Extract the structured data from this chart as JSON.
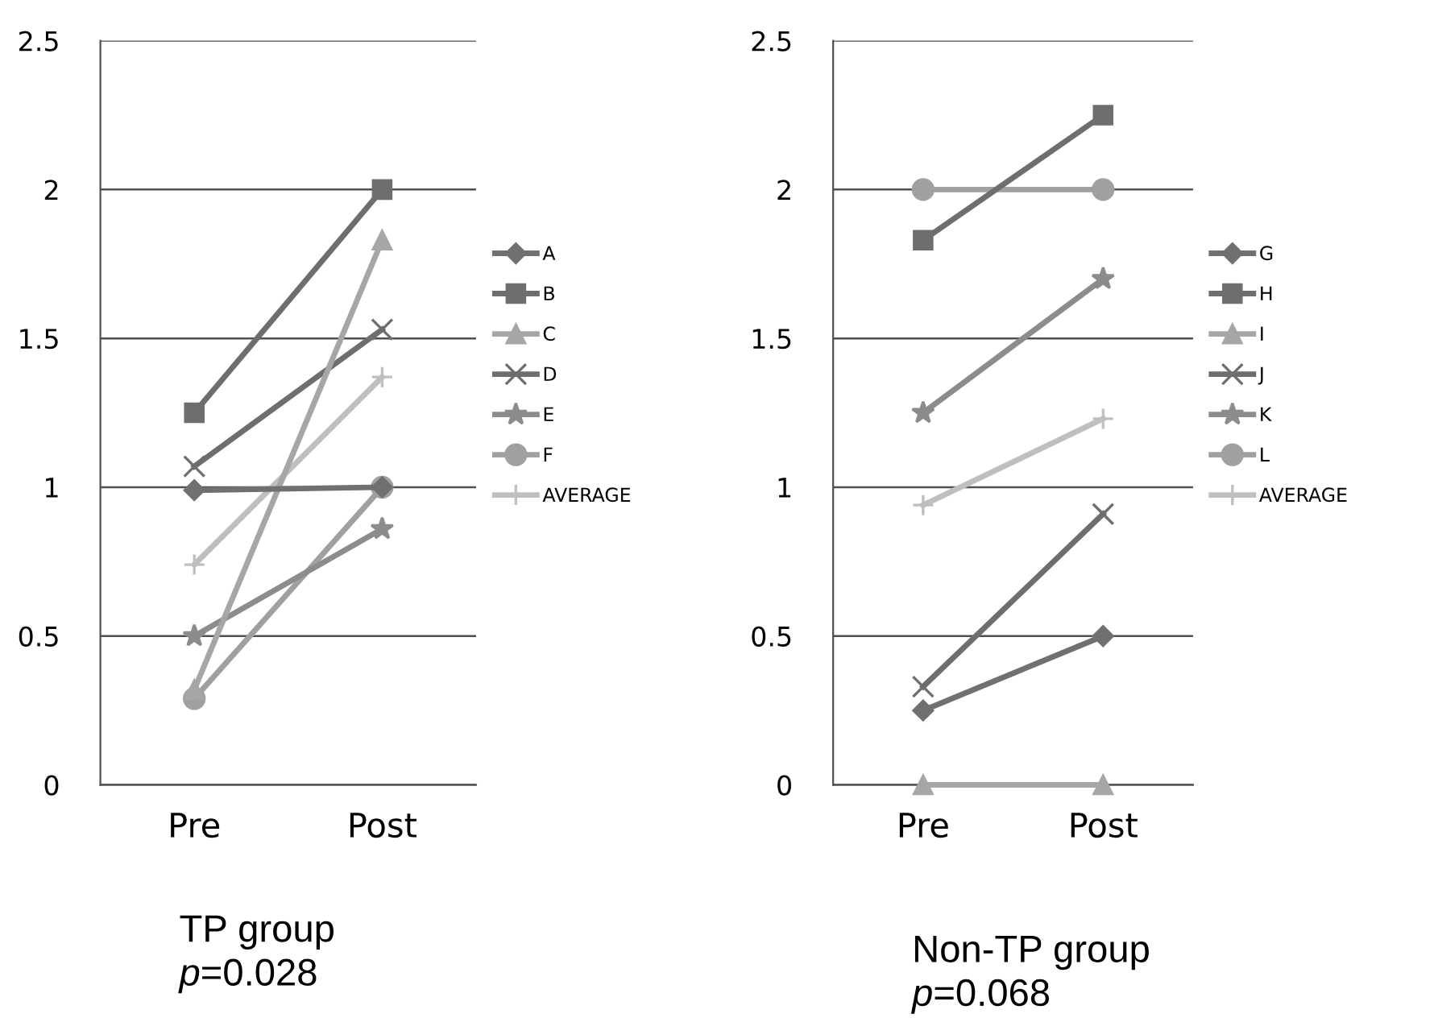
{
  "chart_data": [
    {
      "type": "line",
      "title": "TP group",
      "annotations": [
        "p=0.028"
      ],
      "categories": [
        "Pre",
        "Post"
      ],
      "ylim": [
        0,
        2.5
      ],
      "yticks": [
        0,
        0.5,
        1,
        1.5,
        2,
        2.5
      ],
      "grid": "y",
      "legend": "right",
      "series": [
        {
          "name": "A",
          "color": "#707070",
          "marker": "diamond",
          "values": [
            0.99,
            1.0
          ]
        },
        {
          "name": "B",
          "color": "#6e6e6e",
          "marker": "square",
          "values": [
            1.25,
            2.0
          ]
        },
        {
          "name": "C",
          "color": "#a6a6a6",
          "marker": "triangle",
          "values": [
            0.32,
            1.83
          ]
        },
        {
          "name": "D",
          "color": "#6e6e6e",
          "marker": "cross",
          "values": [
            1.07,
            1.53
          ]
        },
        {
          "name": "E",
          "color": "#8c8c8c",
          "marker": "star",
          "values": [
            0.5,
            0.86
          ]
        },
        {
          "name": "F",
          "color": "#a0a0a0",
          "marker": "circle",
          "values": [
            0.29,
            1.0
          ]
        },
        {
          "name": "AVERAGE",
          "color": "#bfbfbf",
          "marker": "plus",
          "values": [
            0.74,
            1.37
          ]
        }
      ]
    },
    {
      "type": "line",
      "title": "Non-TP group",
      "annotations": [
        "p=0.068"
      ],
      "categories": [
        "Pre",
        "Post"
      ],
      "ylim": [
        0,
        2.5
      ],
      "yticks": [
        0,
        0.5,
        1,
        1.5,
        2,
        2.5
      ],
      "grid": "y",
      "legend": "right",
      "series": [
        {
          "name": "G",
          "color": "#707070",
          "marker": "diamond",
          "values": [
            0.25,
            0.5
          ]
        },
        {
          "name": "H",
          "color": "#6e6e6e",
          "marker": "square",
          "values": [
            1.83,
            2.25
          ]
        },
        {
          "name": "I",
          "color": "#a6a6a6",
          "marker": "triangle",
          "values": [
            0,
            0
          ]
        },
        {
          "name": "J",
          "color": "#6e6e6e",
          "marker": "cross",
          "values": [
            0.33,
            0.91
          ]
        },
        {
          "name": "K",
          "color": "#8c8c8c",
          "marker": "star",
          "values": [
            1.25,
            1.7
          ]
        },
        {
          "name": "L",
          "color": "#a0a0a0",
          "marker": "circle",
          "values": [
            2,
            2
          ]
        },
        {
          "name": "AVERAGE",
          "color": "#bfbfbf",
          "marker": "plus",
          "values": [
            0.94,
            1.23
          ]
        }
      ]
    }
  ]
}
